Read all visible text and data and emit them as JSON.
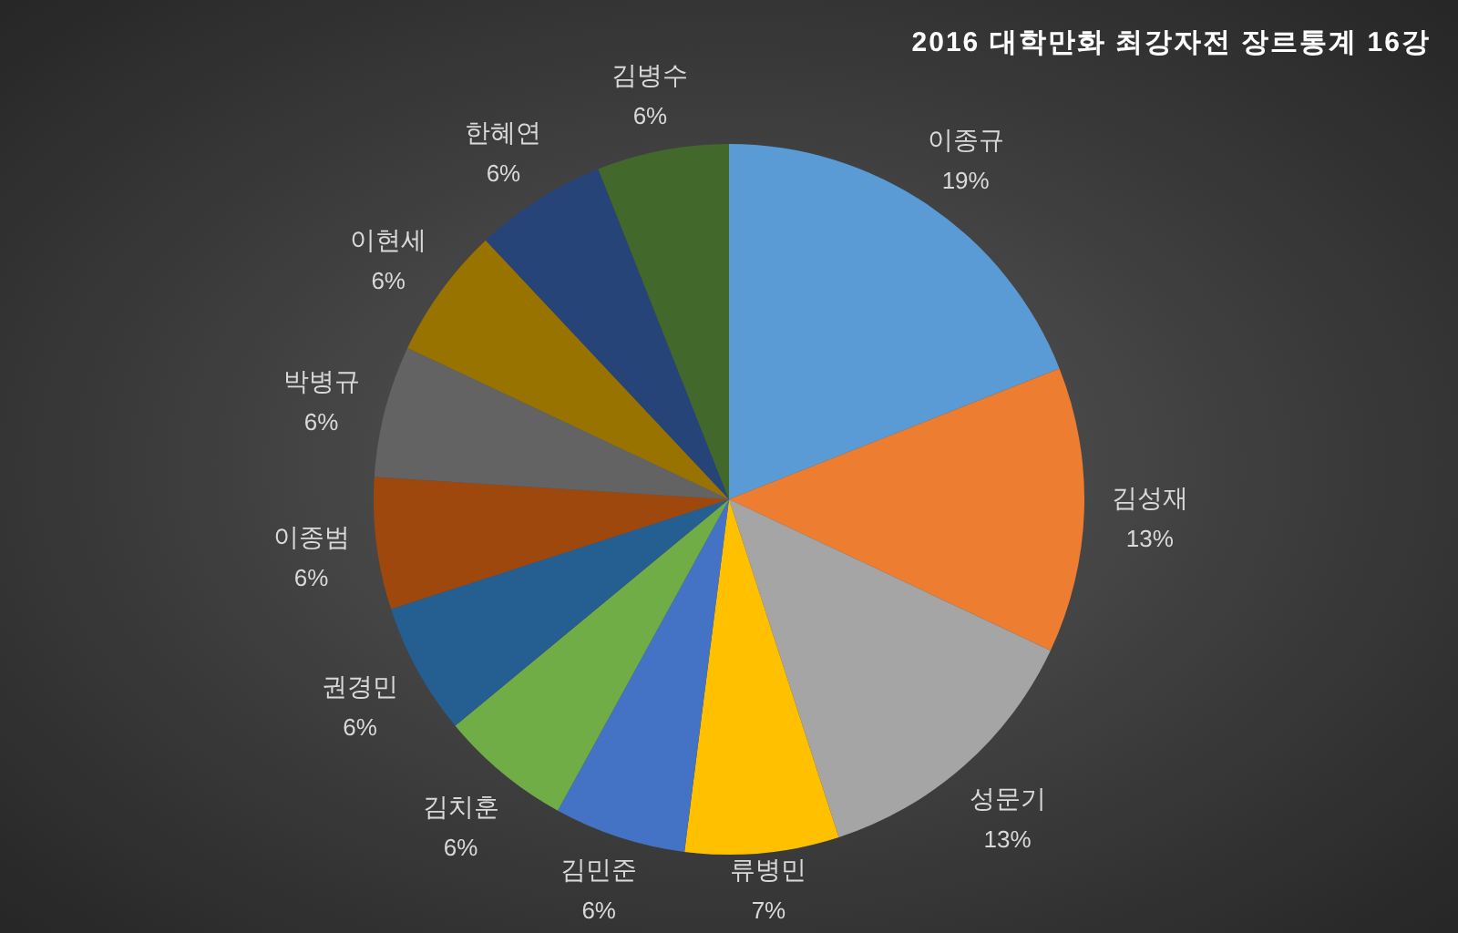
{
  "chart_data": {
    "type": "pie",
    "title": "2016 대학만화 최강자전 장르통계 16강",
    "categories": [
      "이종규",
      "김성재",
      "성문기",
      "류병민",
      "김민준",
      "김치훈",
      "권경민",
      "이종범",
      "박병규",
      "이현세",
      "한혜연",
      "김병수"
    ],
    "values": [
      19,
      13,
      13,
      7,
      6,
      6,
      6,
      6,
      6,
      6,
      6,
      6
    ],
    "value_labels": [
      "19%",
      "13%",
      "13%",
      "7%",
      "6%",
      "6%",
      "6%",
      "6%",
      "6%",
      "6%",
      "6%",
      "6%"
    ],
    "colors": [
      "#5b9bd5",
      "#ed7d31",
      "#a5a5a5",
      "#ffc000",
      "#4472c4",
      "#70ad47",
      "#255e91",
      "#9e480e",
      "#636363",
      "#997300",
      "#264478",
      "#43682b"
    ]
  }
}
